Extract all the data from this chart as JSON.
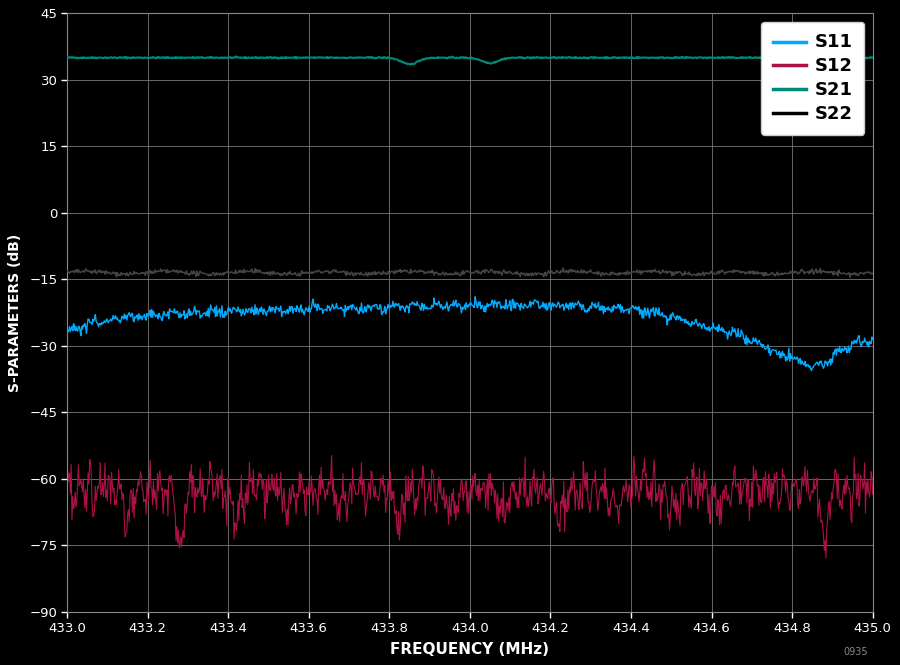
{
  "title": "",
  "xlabel": "FREQUENCY (MHz)",
  "ylabel": "S-PARAMETERS (dB)",
  "xlim": [
    433.0,
    435.0
  ],
  "ylim": [
    -90,
    45
  ],
  "yticks": [
    -90,
    -75,
    -60,
    -45,
    -30,
    -15,
    0,
    15,
    30,
    45
  ],
  "xticks": [
    433.0,
    433.2,
    433.4,
    433.6,
    433.8,
    434.0,
    434.2,
    434.4,
    434.6,
    434.8,
    435.0
  ],
  "background_color": "#000000",
  "plot_bg_color": "#000000",
  "grid_color": "#555555",
  "s11_color": "#00aaff",
  "s12_color": "#aa1144",
  "s21_color": "#008877",
  "s22_color": "#444444",
  "legend_facecolor": "#ffffff",
  "legend_textcolor": "#000000",
  "tick_color": "#ffffff",
  "label_color": "#ffffff",
  "spine_color": "#888888",
  "legend_labels": [
    "S11",
    "S12",
    "S21",
    "S22"
  ],
  "seed": 42,
  "n_points": 1000
}
